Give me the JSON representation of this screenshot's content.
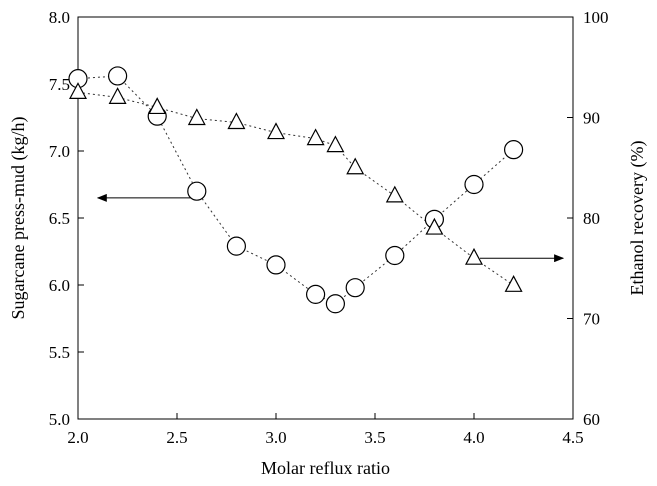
{
  "chart_data": {
    "type": "scatter",
    "xlabel": "Molar reflux ratio",
    "ylabel_left": "Sugarcane press-mud (kg/h)",
    "ylabel_right": "Ethanol recovery (%)",
    "xlim": [
      2.0,
      4.5
    ],
    "ylim_left": [
      5.0,
      8.0
    ],
    "ylim_right": [
      60,
      100
    ],
    "x_ticks": [
      "2.0",
      "2.5",
      "3.0",
      "3.5",
      "4.0",
      "4.5"
    ],
    "y_ticks_left": [
      "5.0",
      "5.5",
      "6.0",
      "6.5",
      "7.0",
      "7.5",
      "8.0"
    ],
    "y_ticks_right": [
      "60",
      "70",
      "80",
      "90",
      "100"
    ],
    "grid": false,
    "series": [
      {
        "marker": "circle",
        "axis": "left",
        "line_style": "dotted",
        "points": [
          {
            "x": 2.0,
            "y": 7.54
          },
          {
            "x": 2.2,
            "y": 7.56
          },
          {
            "x": 2.4,
            "y": 7.26
          },
          {
            "x": 2.6,
            "y": 6.7
          },
          {
            "x": 2.8,
            "y": 6.29
          },
          {
            "x": 3.0,
            "y": 6.15
          },
          {
            "x": 3.2,
            "y": 5.93
          },
          {
            "x": 3.3,
            "y": 5.86
          },
          {
            "x": 3.4,
            "y": 5.98
          },
          {
            "x": 3.6,
            "y": 6.22
          },
          {
            "x": 3.8,
            "y": 6.49
          },
          {
            "x": 4.0,
            "y": 6.75
          },
          {
            "x": 4.2,
            "y": 7.01
          }
        ]
      },
      {
        "marker": "triangle",
        "axis": "right",
        "line_style": "dotted",
        "points": [
          {
            "x": 2.0,
            "y": 92.5
          },
          {
            "x": 2.2,
            "y": 92.0
          },
          {
            "x": 2.4,
            "y": 91.0
          },
          {
            "x": 2.6,
            "y": 89.9
          },
          {
            "x": 2.8,
            "y": 89.5
          },
          {
            "x": 3.0,
            "y": 88.5
          },
          {
            "x": 3.2,
            "y": 87.9
          },
          {
            "x": 3.3,
            "y": 87.2
          },
          {
            "x": 3.4,
            "y": 85.0
          },
          {
            "x": 3.6,
            "y": 82.2
          },
          {
            "x": 3.8,
            "y": 79.0
          },
          {
            "x": 4.0,
            "y": 76.0
          },
          {
            "x": 4.2,
            "y": 73.3
          }
        ]
      }
    ],
    "annotations": [
      {
        "type": "arrow",
        "direction": "left",
        "refers_to": "left-axis",
        "x_from": 2.57,
        "x_to": 2.1,
        "y": 6.65,
        "y_axis": "left"
      },
      {
        "type": "arrow",
        "direction": "right",
        "refers_to": "right-axis",
        "x_from": 4.03,
        "x_to": 4.45,
        "y": 76.0,
        "y_axis": "right"
      }
    ]
  }
}
